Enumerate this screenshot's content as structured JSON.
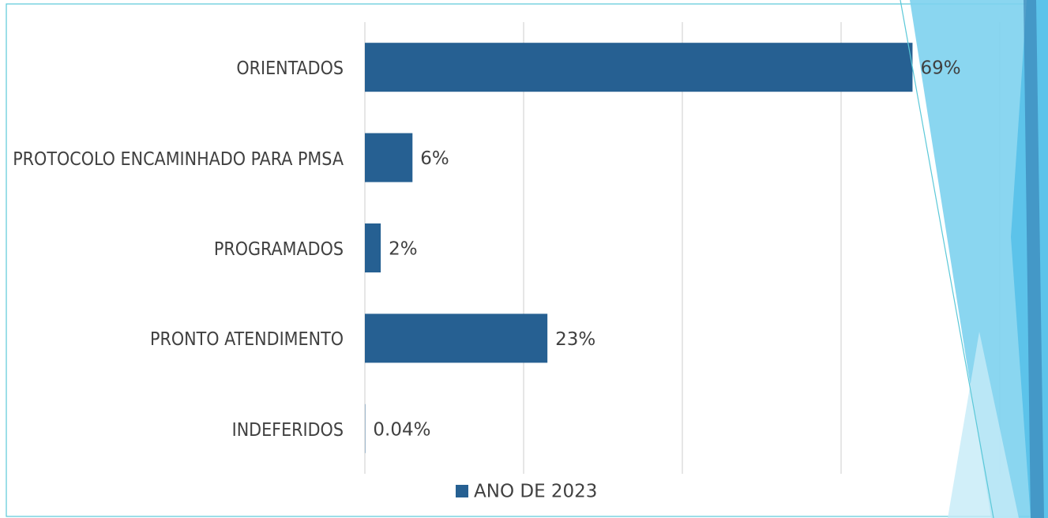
{
  "chart_data": {
    "type": "bar",
    "orientation": "horizontal",
    "categories": [
      "ORIENTADOS",
      "PROTOCOLO ENCAMINHADO PARA PMSA",
      "PROGRAMADOS",
      "PRONTO ATENDIMENTO",
      "INDEFERIDOS"
    ],
    "series": [
      {
        "name": "ANO DE 2023",
        "color": "#266092",
        "values": [
          69,
          6,
          2,
          23,
          0.04
        ],
        "value_labels": [
          "69%",
          "6%",
          "2%",
          "23%",
          "0.04%"
        ]
      }
    ],
    "xlim": [
      0,
      80
    ],
    "xticks": [
      0,
      20,
      40,
      60,
      80
    ],
    "grid": true,
    "legend": "bottom"
  }
}
